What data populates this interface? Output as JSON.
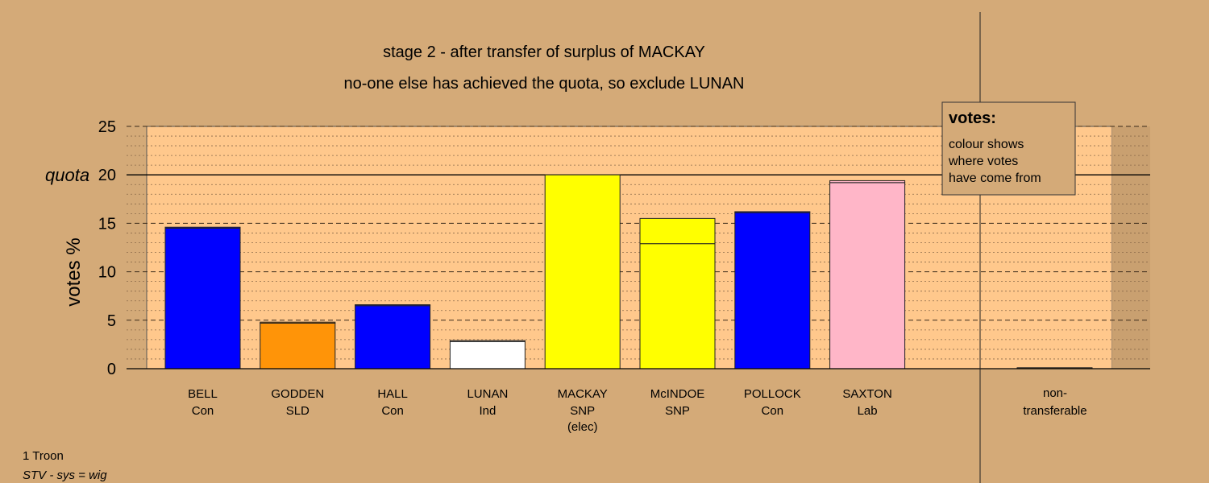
{
  "chart_data": {
    "type": "bar",
    "title": "stage 2 - after transfer of surplus of MACKAY",
    "subtitle": "no-one else has achieved the quota, so exclude LUNAN",
    "ylabel": "votes %",
    "ylim": [
      0,
      25
    ],
    "yticks": [
      0,
      5,
      10,
      15,
      20,
      25
    ],
    "ytick_labels": [
      "0",
      "5",
      "10",
      "15",
      "20",
      "25"
    ],
    "quota_label": "quota",
    "quota": 20,
    "grid": true,
    "candidates": [
      {
        "name": "BELL",
        "party": "Con",
        "note": "",
        "color": "#0000ff",
        "segments": [
          {
            "value": 14.5,
            "color": "#0000ff"
          },
          {
            "value": 0.1,
            "color": "#0000ff"
          }
        ]
      },
      {
        "name": "GODDEN",
        "party": "SLD",
        "note": "",
        "color": "#ff9408",
        "segments": [
          {
            "value": 4.7,
            "color": "#ff9408"
          },
          {
            "value": 0.1,
            "color": "#ff9408"
          }
        ]
      },
      {
        "name": "HALL",
        "party": "Con",
        "note": "",
        "color": "#0000ff",
        "segments": [
          {
            "value": 6.5,
            "color": "#0000ff"
          },
          {
            "value": 0.1,
            "color": "#0000ff"
          }
        ]
      },
      {
        "name": "LUNAN",
        "party": "Ind",
        "note": "",
        "color": "#ffffff",
        "segments": [
          {
            "value": 2.8,
            "color": "#ffffff"
          },
          {
            "value": 0.1,
            "color": "#ffffff"
          }
        ]
      },
      {
        "name": "MACKAY",
        "party": "SNP",
        "note": "(elec)",
        "color": "#ffff00",
        "segments": [
          {
            "value": 20.0,
            "color": "#ffff00"
          }
        ]
      },
      {
        "name": "McINDOE",
        "party": "SNP",
        "note": "",
        "color": "#ffff00",
        "segments": [
          {
            "value": 12.9,
            "color": "#ffff00"
          },
          {
            "value": 2.6,
            "color": "#ffff00"
          }
        ]
      },
      {
        "name": "POLLOCK",
        "party": "Con",
        "note": "",
        "color": "#0000ff",
        "segments": [
          {
            "value": 16.1,
            "color": "#0000ff"
          },
          {
            "value": 0.1,
            "color": "#0000ff"
          }
        ]
      },
      {
        "name": "SAXTON",
        "party": "Lab",
        "note": "",
        "color": "#ffb6c8",
        "segments": [
          {
            "value": 19.2,
            "color": "#ffb6c8"
          },
          {
            "value": 0.2,
            "color": "#ffb6c8"
          }
        ]
      }
    ],
    "non_transferable": {
      "label_line1": "non-",
      "label_line2": "transferable",
      "value": 0.1
    }
  },
  "legend": {
    "title": "votes:",
    "lines": [
      "colour shows",
      "where votes",
      "have come from"
    ]
  },
  "footer": {
    "line1": "1 Troon",
    "line2": "STV - sys = wig"
  },
  "colors": {
    "background": "#d4aa78",
    "plot_area": "#ffc88c"
  }
}
